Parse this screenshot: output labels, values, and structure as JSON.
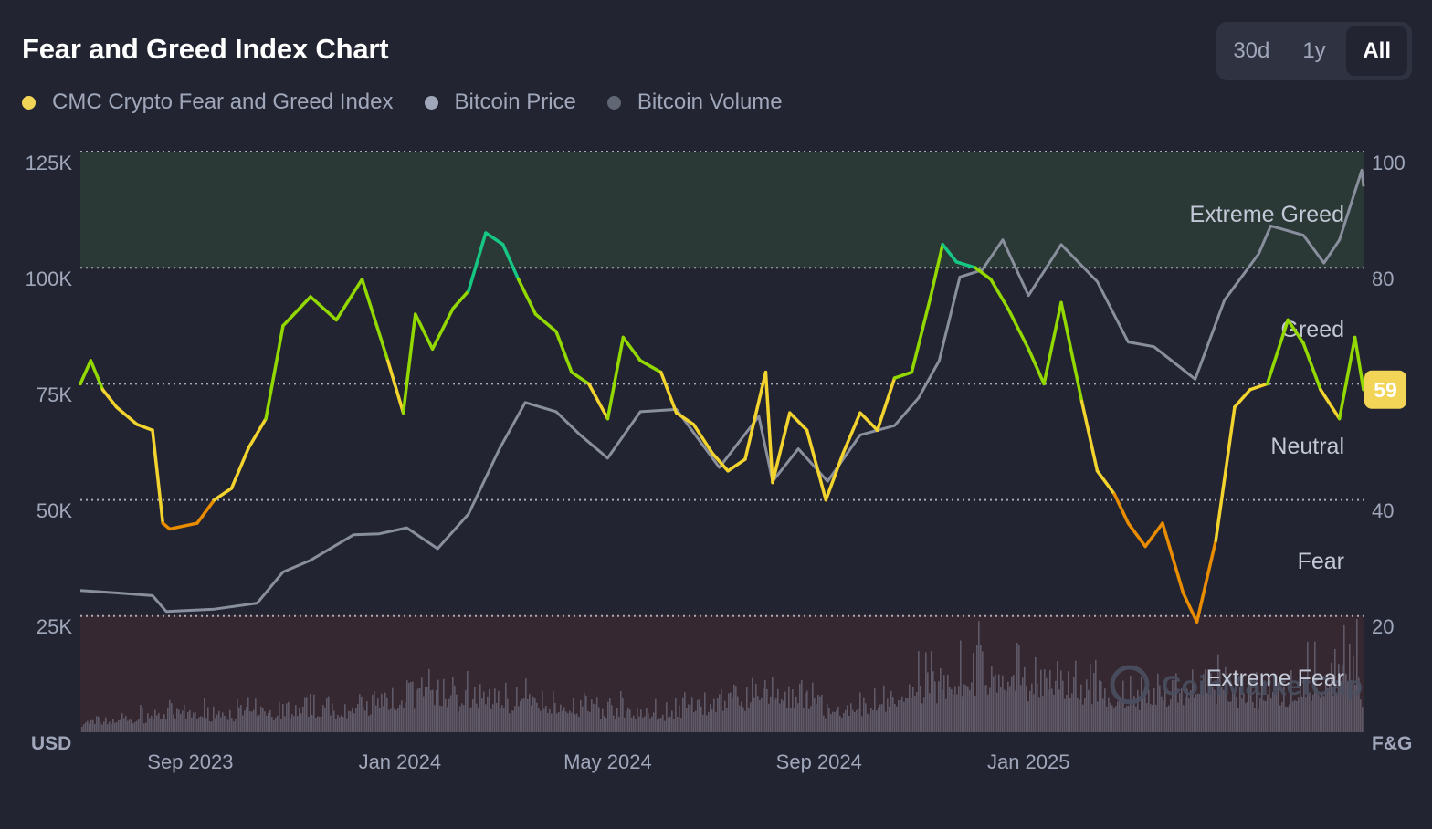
{
  "title": "Fear and Greed Index Chart",
  "range_buttons": [
    {
      "label": "30d",
      "active": false
    },
    {
      "label": "1y",
      "active": false
    },
    {
      "label": "All",
      "active": true
    }
  ],
  "legend": [
    {
      "label": "CMC Crypto Fear and Greed Index",
      "color": "#f2d457"
    },
    {
      "label": "Bitcoin Price",
      "color": "#a1a7bb"
    },
    {
      "label": "Bitcoin Volume",
      "color": "#616675"
    }
  ],
  "current_value": "59",
  "watermark": "CoinMarketCap",
  "colors": {
    "background": "#222531",
    "extreme_greed_band": "#2a3836",
    "extreme_fear_band": "#352830",
    "price_line": "#8a8f9e",
    "volume_bars": "#5f5968",
    "badge": "#f2d457",
    "fg_extreme_fear": "#ea3943",
    "fg_fear": "#ea8c00",
    "fg_neutral": "#f3d42f",
    "fg_greed": "#93d900",
    "fg_extreme_greed": "#16c784"
  },
  "chart_data": {
    "type": "line",
    "left_axis": {
      "unit": "USD",
      "ticks": [
        "125K",
        "100K",
        "75K",
        "50K",
        "25K"
      ],
      "ylim": [
        0,
        125000
      ]
    },
    "right_axis": {
      "unit": "F&G",
      "ticks": [
        "100",
        "80",
        "60",
        "40",
        "20"
      ],
      "ylim": [
        0,
        100
      ]
    },
    "x_ticks": [
      "Sep 2023",
      "Jan 2024",
      "May 2024",
      "Sep 2024",
      "Jan 2025"
    ],
    "x_tick_dates": [
      "2023-09-01",
      "2024-01-01",
      "2024-05-01",
      "2024-09-01",
      "2025-01-01"
    ],
    "xlim": [
      "2023-06-29",
      "2025-07-15"
    ],
    "grid": true,
    "zones": [
      {
        "label": "Extreme Greed",
        "range": [
          80,
          100
        ]
      },
      {
        "label": "Greed",
        "range": [
          60,
          80
        ]
      },
      {
        "label": "Neutral",
        "range": [
          40,
          60
        ]
      },
      {
        "label": "Fear",
        "range": [
          20,
          40
        ]
      },
      {
        "label": "Extreme Fear",
        "range": [
          0,
          20
        ]
      }
    ],
    "series": [
      {
        "name": "CMC Crypto Fear and Greed Index",
        "axis": "right",
        "x": [
          "2023-06-29",
          "2023-07-05",
          "2023-07-12",
          "2023-07-20",
          "2023-08-01",
          "2023-08-10",
          "2023-08-16",
          "2023-08-20",
          "2023-09-05",
          "2023-09-15",
          "2023-09-25",
          "2023-10-05",
          "2023-10-15",
          "2023-10-25",
          "2023-11-10",
          "2023-11-25",
          "2023-12-10",
          "2023-12-25",
          "2024-01-03",
          "2024-01-10",
          "2024-01-20",
          "2024-02-01",
          "2024-02-10",
          "2024-02-20",
          "2024-03-01",
          "2024-03-10",
          "2024-03-20",
          "2024-04-01",
          "2024-04-10",
          "2024-04-20",
          "2024-05-01",
          "2024-05-10",
          "2024-05-20",
          "2024-06-01",
          "2024-06-10",
          "2024-06-20",
          "2024-07-01",
          "2024-07-10",
          "2024-07-20",
          "2024-08-01",
          "2024-08-05",
          "2024-08-15",
          "2024-08-25",
          "2024-09-05",
          "2024-09-15",
          "2024-09-25",
          "2024-10-05",
          "2024-10-15",
          "2024-10-25",
          "2024-11-05",
          "2024-11-12",
          "2024-11-20",
          "2024-12-01",
          "2024-12-10",
          "2024-12-20",
          "2025-01-01",
          "2025-01-10",
          "2025-01-20",
          "2025-02-01",
          "2025-02-10",
          "2025-02-20",
          "2025-02-28",
          "2025-03-10",
          "2025-03-20",
          "2025-04-01",
          "2025-04-09",
          "2025-04-20",
          "2025-05-01",
          "2025-05-10",
          "2025-05-20",
          "2025-06-01",
          "2025-06-10",
          "2025-06-20",
          "2025-07-01",
          "2025-07-10",
          "2025-07-15"
        ],
        "values": [
          60,
          64,
          59,
          56,
          53,
          52,
          36,
          35,
          36,
          40,
          42,
          49,
          54,
          70,
          75,
          71,
          78,
          64,
          55,
          72,
          66,
          73,
          76,
          86,
          84,
          78,
          72,
          69,
          62,
          60,
          54,
          68,
          64,
          62,
          55,
          53,
          48,
          45,
          47,
          62,
          43,
          55,
          52,
          40,
          48,
          55,
          52,
          61,
          62,
          75,
          84,
          81,
          80,
          78,
          73,
          66,
          60,
          74,
          57,
          45,
          41,
          36,
          32,
          36,
          24,
          19,
          33,
          56,
          59,
          60,
          71,
          67,
          59,
          54,
          68,
          59
        ]
      },
      {
        "name": "Bitcoin Price",
        "axis": "left",
        "x": [
          "2023-06-29",
          "2023-07-20",
          "2023-08-10",
          "2023-08-18",
          "2023-09-15",
          "2023-10-10",
          "2023-10-25",
          "2023-11-10",
          "2023-12-05",
          "2023-12-20",
          "2024-01-05",
          "2024-01-23",
          "2024-02-10",
          "2024-02-28",
          "2024-03-14",
          "2024-04-01",
          "2024-04-15",
          "2024-05-01",
          "2024-05-20",
          "2024-06-10",
          "2024-07-05",
          "2024-07-28",
          "2024-08-05",
          "2024-08-20",
          "2024-09-06",
          "2024-09-25",
          "2024-10-15",
          "2024-10-29",
          "2024-11-10",
          "2024-11-22",
          "2024-12-05",
          "2024-12-17",
          "2025-01-01",
          "2025-01-20",
          "2025-02-10",
          "2025-02-28",
          "2025-03-15",
          "2025-04-08",
          "2025-04-25",
          "2025-05-15",
          "2025-05-22",
          "2025-06-10",
          "2025-06-22",
          "2025-07-01",
          "2025-07-14",
          "2025-07-15"
        ],
        "values": [
          30500,
          30000,
          29400,
          26000,
          26500,
          27800,
          34500,
          37000,
          42500,
          42700,
          44000,
          39500,
          47000,
          61000,
          71000,
          69000,
          64000,
          59000,
          69000,
          69500,
          57000,
          68000,
          54000,
          61000,
          54000,
          64000,
          66000,
          72000,
          80000,
          98000,
          99500,
          106000,
          94000,
          105000,
          97000,
          84000,
          83000,
          76000,
          93000,
          103000,
          109000,
          107000,
          101000,
          106000,
          121000,
          117500
        ]
      },
      {
        "name": "Bitcoin Volume",
        "axis": "left",
        "x": [
          "2023-06-29",
          "2023-08-17",
          "2023-10-25",
          "2023-12-10",
          "2024-01-11",
          "2024-03-05",
          "2024-04-10",
          "2024-06-01",
          "2024-08-05",
          "2024-09-15",
          "2024-11-12",
          "2024-12-05",
          "2025-01-20",
          "2025-02-28",
          "2025-04-07",
          "2025-05-20",
          "2025-07-11",
          "2025-07-15"
        ],
        "values": [
          3000,
          6000,
          7000,
          8000,
          13000,
          11000,
          9000,
          6000,
          14000,
          6000,
          18000,
          20000,
          15000,
          11000,
          15000,
          12000,
          22000,
          8000
        ]
      }
    ]
  }
}
